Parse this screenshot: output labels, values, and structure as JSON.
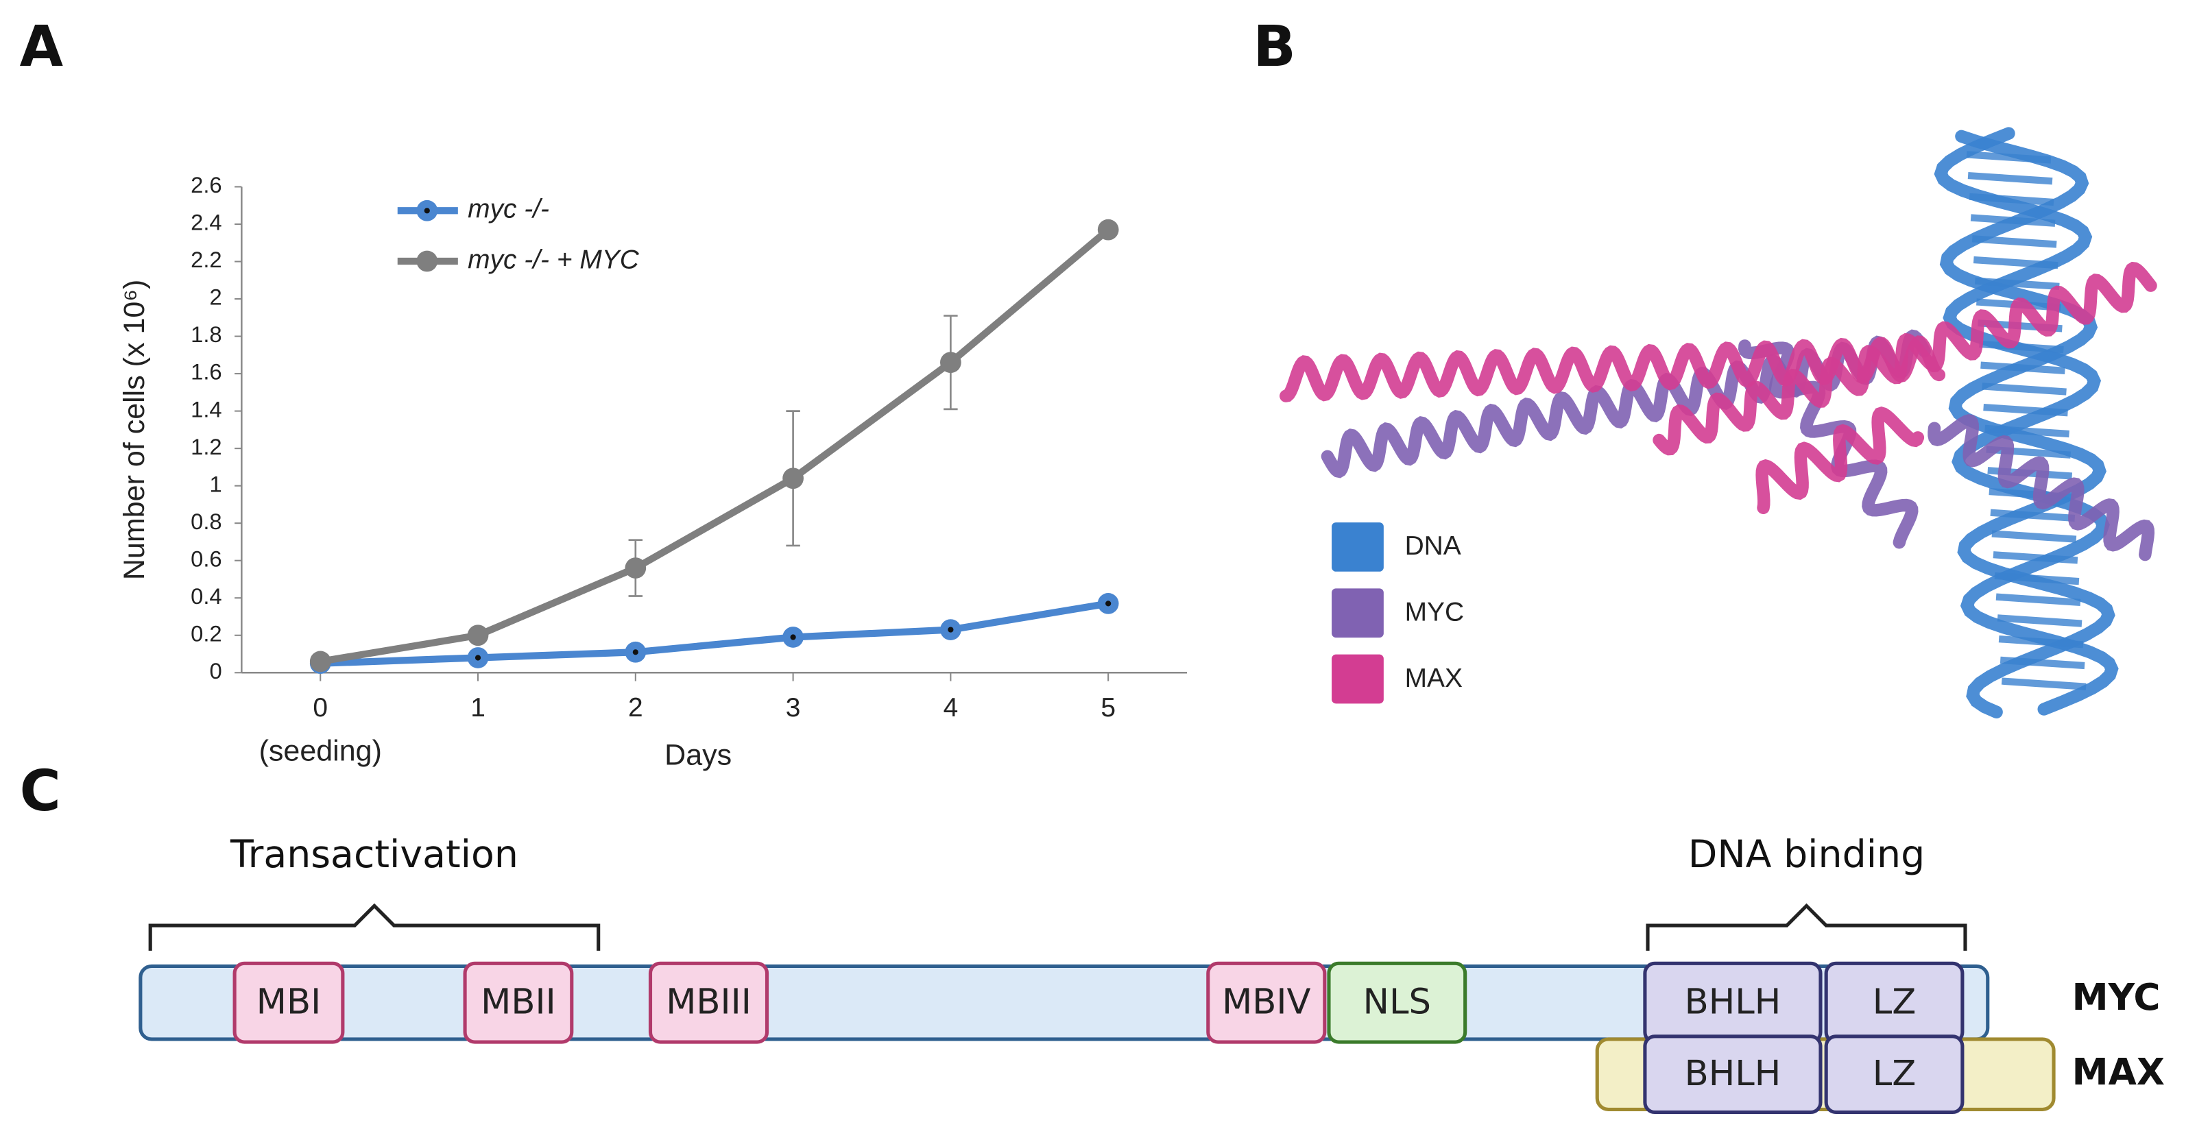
{
  "panel_labels": [
    "A",
    "B",
    "C"
  ],
  "chart_data": {
    "type": "line",
    "x": [
      0,
      1,
      2,
      3,
      4,
      5
    ],
    "xlim": [
      -0.5,
      5.5
    ],
    "xticks": [
      0,
      1,
      2,
      3,
      4,
      5
    ],
    "x_tick_note": "(seeding)",
    "xlabel": "Days",
    "ylabel": "Number of cells (x 10⁶)",
    "ylim": [
      0,
      2.6
    ],
    "yticks": [
      0,
      0.2,
      0.4,
      0.6,
      0.8,
      1,
      1.2,
      1.4,
      1.6,
      1.8,
      2,
      2.2,
      2.4,
      2.6
    ],
    "series": [
      {
        "name": "myc -/-",
        "color": "#4a86d0",
        "values": [
          0.05,
          0.08,
          0.11,
          0.19,
          0.23,
          0.37
        ]
      },
      {
        "name": "myc -/- + MYC",
        "color": "#7f7f7f",
        "values": [
          0.06,
          0.2,
          0.56,
          1.04,
          1.66,
          2.37
        ],
        "errors": [
          0,
          0,
          0.15,
          0.36,
          0.25,
          0
        ]
      }
    ]
  },
  "structure_legend": [
    {
      "label": "DNA",
      "color": "#3a82d0"
    },
    {
      "label": "MYC",
      "color": "#8062b2"
    },
    {
      "label": "MAX",
      "color": "#d33d92"
    }
  ],
  "diagram": {
    "brackets": [
      "Transactivation",
      "DNA binding"
    ],
    "proteins": [
      {
        "name": "MYC",
        "domains": [
          "MBI",
          "MBII",
          "MBIII",
          "MBIV",
          "NLS",
          "BHLH",
          "LZ"
        ]
      },
      {
        "name": "MAX",
        "domains": [
          "BHLH",
          "LZ"
        ]
      }
    ]
  }
}
